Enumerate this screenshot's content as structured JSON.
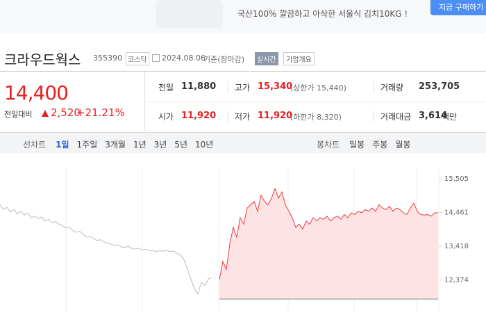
{
  "ad": {
    "text": "국산100% 깔끔하고 아삭한 서울식 김치10KG !",
    "button": "지금 구매하기"
  },
  "header": {
    "name": "크라우드웍스",
    "code": "355390",
    "market": "코스닥",
    "date": "2024.08.06",
    "basis": "기준(장마감)",
    "realtime": "실시간",
    "company": "기업개요"
  },
  "price": {
    "current": "14,400",
    "change_label": "전일대비",
    "change": "2,520",
    "rate": "+21.21%"
  },
  "table": {
    "rows": [
      [
        {
          "label": "전일",
          "value": "11,880"
        },
        {
          "label": "고가",
          "value": "15,340",
          "note": "(상한가 15,440)"
        },
        {
          "label": "거래량",
          "value": "253,705"
        }
      ],
      [
        {
          "label": "시가",
          "value": "11,920"
        },
        {
          "label": "저가",
          "value": "11,920",
          "note": "(하한가 8,320)"
        },
        {
          "label": "거래대금",
          "value": "3,614",
          "unit": "백만"
        }
      ]
    ]
  },
  "tabs": {
    "line_label": "선차트",
    "periods": [
      "1일",
      "1주일",
      "3개월",
      "1년",
      "3년",
      "5년",
      "10년"
    ],
    "candle_label": "봉차트",
    "candles": [
      "일봉",
      "주봉",
      "월봉"
    ]
  },
  "chart_data": {
    "type": "line",
    "ylim": [
      11353,
      15871
    ],
    "yticks": [
      {
        "value": 12374,
        "label": "12,374"
      },
      {
        "value": 13418,
        "label": "13,418"
      },
      {
        "value": 14461,
        "label": "14,461"
      },
      {
        "value": 15505,
        "label": "15,505"
      }
    ],
    "series": [
      {
        "color": "#bbbbbb",
        "values": [
          14700,
          14560,
          14620,
          14480,
          14550,
          14420,
          14500,
          14380,
          14450,
          14300,
          14350,
          14280,
          14320,
          14200,
          14250,
          14150,
          14180,
          14100,
          14050,
          13980,
          14000,
          13900,
          13850,
          13880,
          13780,
          13700,
          13720,
          13650,
          13600,
          13620,
          13550,
          13500,
          13480,
          13450,
          13460,
          13400,
          13380,
          13420,
          13350,
          13330,
          13360,
          13300,
          13320,
          13280,
          13300,
          13250,
          13280,
          13260,
          13300,
          13250,
          13270,
          13200,
          13150,
          13000,
          12700,
          12400,
          12100,
          11950,
          12300,
          12200,
          12400,
          12450
        ]
      },
      {
        "color": "#f0383f",
        "fill": "#fde3e4",
        "values": [
          12400,
          12950,
          12700,
          13500,
          14000,
          13700,
          14300,
          14100,
          14600,
          14700,
          14800,
          14500,
          15000,
          14800,
          14700,
          14900,
          15200,
          14900,
          15100,
          14700,
          14500,
          14300,
          14000,
          14100,
          13950,
          14200,
          14100,
          14300,
          14200,
          14300,
          14250,
          14350,
          14200,
          14300,
          14350,
          14250,
          14400,
          14300,
          14450,
          14400,
          14500,
          14450,
          14550,
          14500,
          14600,
          14500,
          14700,
          14600,
          14550,
          14650,
          14500,
          14600,
          14550,
          14450,
          14400,
          14600,
          14750,
          14500,
          14400,
          14380,
          14400,
          14350,
          14450,
          14450
        ]
      }
    ]
  }
}
